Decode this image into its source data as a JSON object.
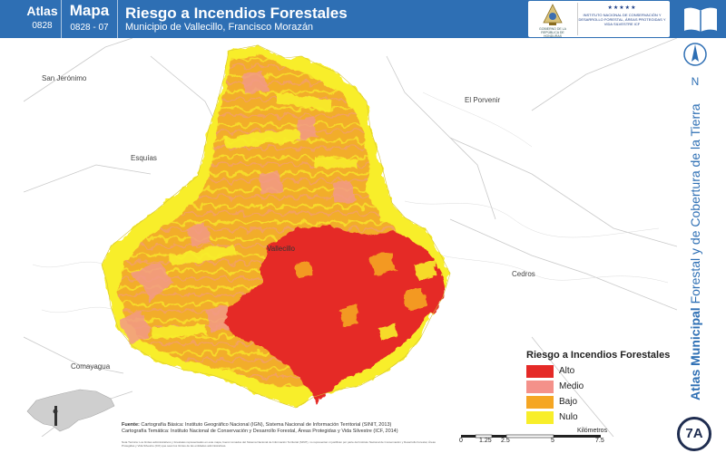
{
  "header": {
    "atlas_label": "Atlas",
    "atlas_code": "0828",
    "map_label": "Mapa",
    "map_code": "0828 - 07",
    "title": "Riesgo a Incendios Forestales",
    "subtitle": "Municipio de Vallecillo, Francisco Morazán",
    "logo_left_text": "GOBIERNO DE LA REPÚBLICA DE HONDURAS",
    "logo_right_stars": "★★★★★",
    "logo_right_text": "INSTITUTO NACIONAL DE CONSERVACIÓN Y DESARROLLO FORESTAL, ÁREAS PROTEGIDAS Y VIDA SILVESTRE ICF"
  },
  "side": {
    "north_label": "N",
    "title_bold": "Atlas Municipal",
    "title_rest": " Forestal y de Cobertura de la Tierra",
    "badge": "7A"
  },
  "places": {
    "san_jeronimo": "San Jerónimo",
    "el_porvenir": "El Porvenir",
    "esquias": "Esquías",
    "vallecillo": "Vallecillo",
    "cedros": "Cedros",
    "comayagua": "Comayagua"
  },
  "legend": {
    "title": "Riesgo a Incendios Forestales",
    "items": [
      {
        "label": "Alto",
        "color": "#e52a27"
      },
      {
        "label": "Medio",
        "color": "#f4918a"
      },
      {
        "label": "Bajo",
        "color": "#f5a623"
      },
      {
        "label": "Nulo",
        "color": "#f8ee2a"
      }
    ]
  },
  "source": {
    "label": "Fuente:",
    "line1": "Cartografía Básica: Instituto Geográfico Nacional (IGN), Sistema Nacional de Información Territorial (SINIT, 2013)",
    "line2": "Cartografía Temática: Instituto Nacional de Conservación y Desarrollo Forestal, Áreas Protegidas y Vida Silvestre (ICF, 2014)",
    "tech_note": "Nota Técnica: Los límites administrativos y forestales representados en este mapa, fueron tomados del Sistema Nacional de Información Territorial (SINIT), no representan ni justifican por parte del Instituto Nacional de Conservación y Desarrollo Forestal, Áreas Protegidas y Vida Silvestre (ICF) que sean los límites de las entidades administrativas."
  },
  "scale": {
    "ticks": [
      "0",
      "1.25",
      "2.5",
      "5",
      "7.5"
    ],
    "unit": "Kilómetros"
  },
  "colors": {
    "header_blue": "#2e6fb4",
    "alto": "#e52a27",
    "medio": "#f4918a",
    "bajo": "#f5a623",
    "nulo": "#f8ee2a"
  }
}
